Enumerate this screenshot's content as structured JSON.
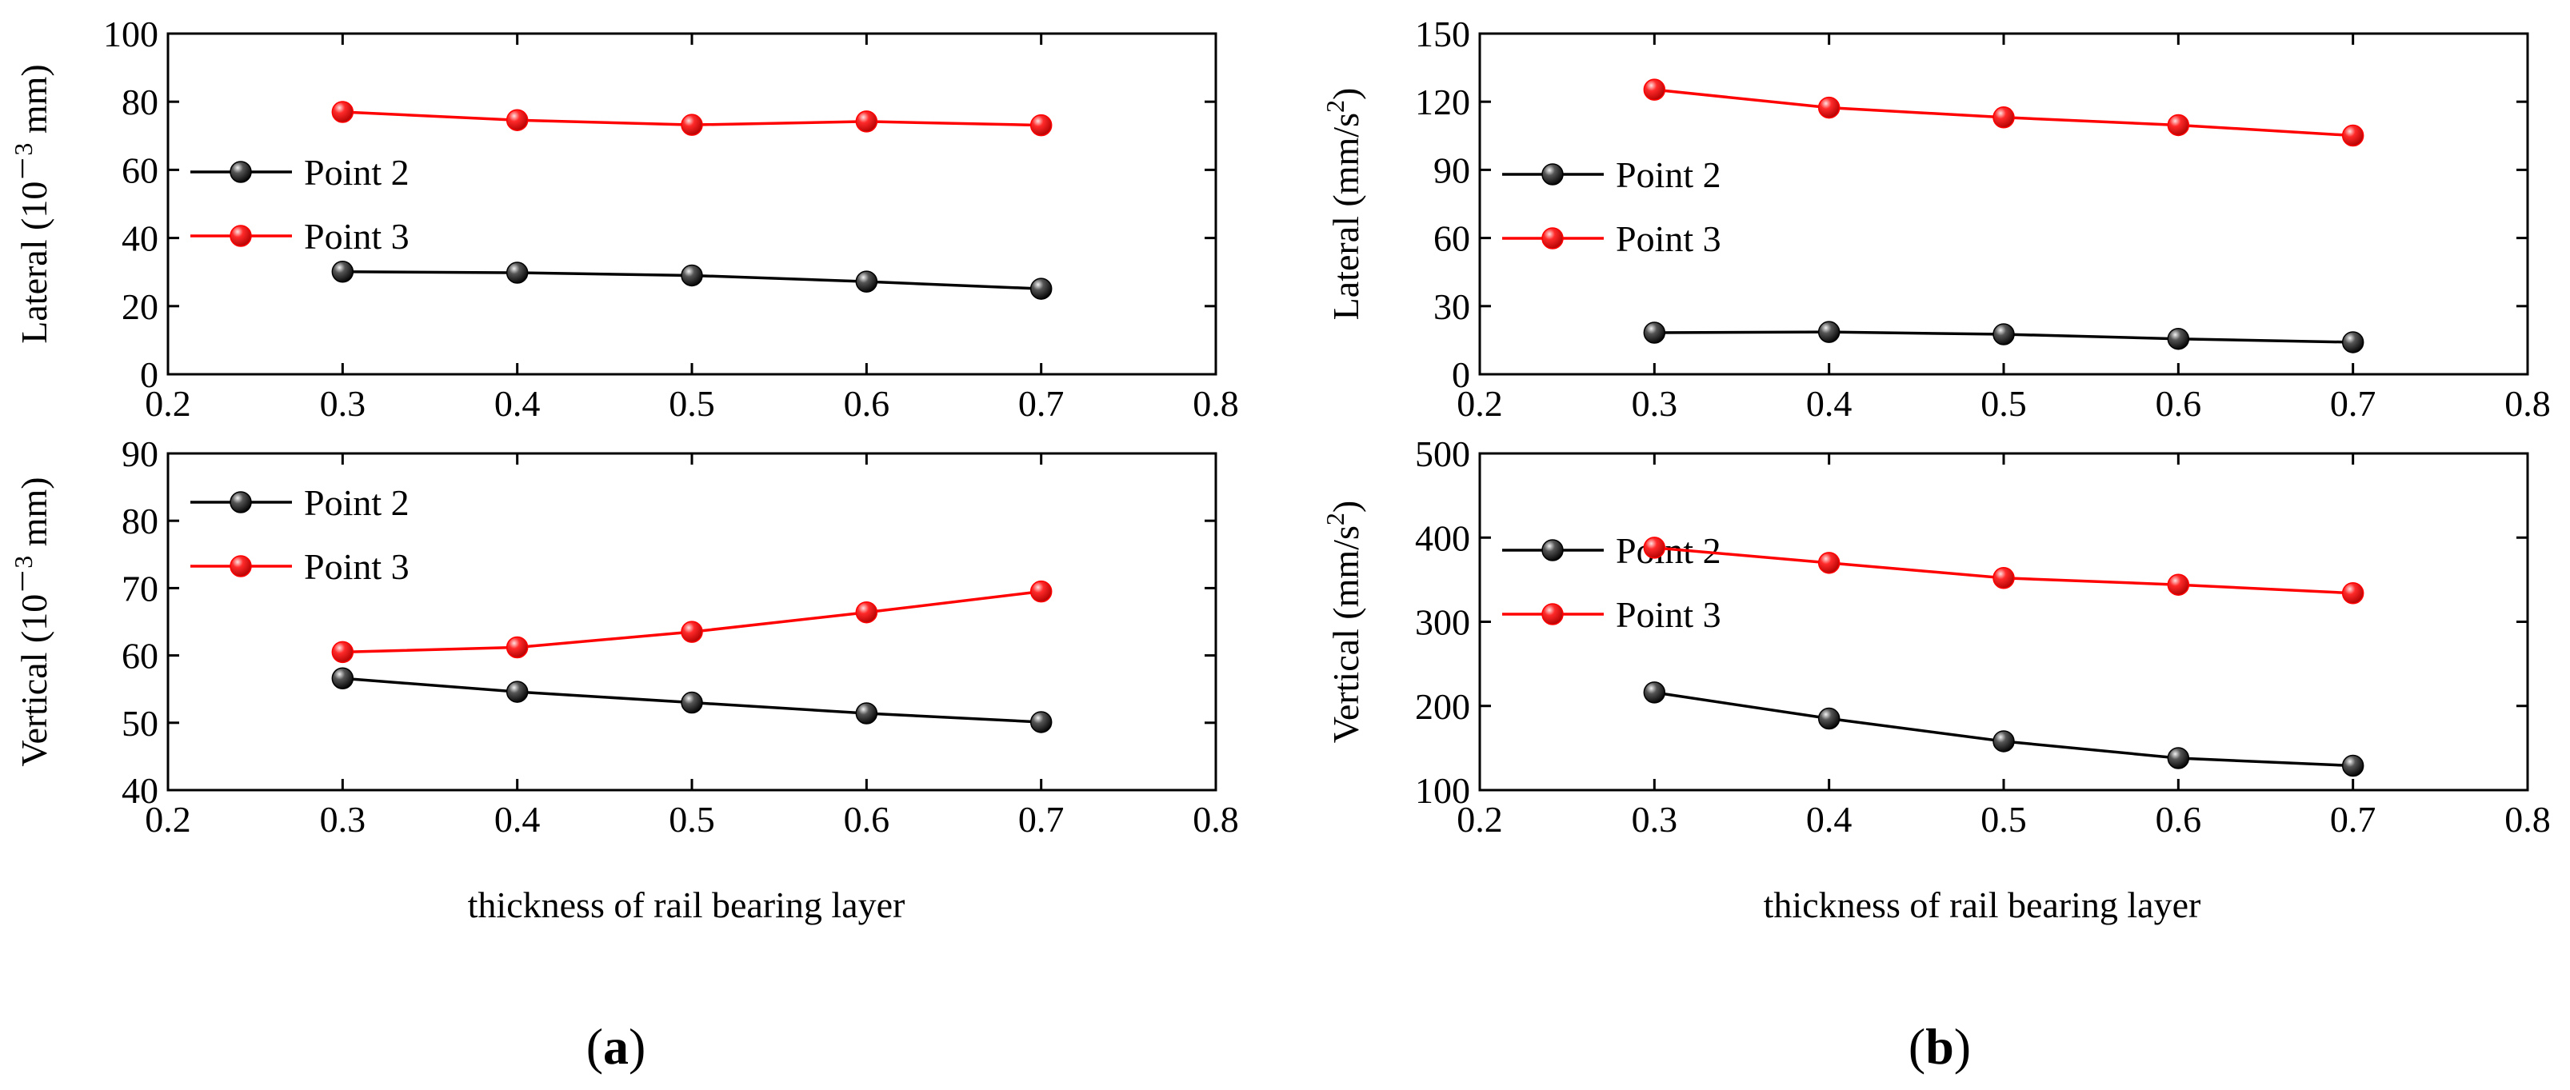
{
  "colors": {
    "black_series": "#000000",
    "red_series": "#ff0000",
    "axis": "#000000"
  },
  "chart_data": [
    {
      "id": "a-top",
      "type": "line",
      "ylabel_prefix": "Lateral (10",
      "ylabel_sup": "－3",
      "ylabel_suffix": " mm)",
      "ylim": [
        0,
        100
      ],
      "yticks": [
        0,
        20,
        40,
        60,
        80,
        100
      ],
      "xlim": [
        0.2,
        0.8
      ],
      "xticks": [
        "0.2",
        "0.3",
        "0.4",
        "0.5",
        "0.6",
        "0.7",
        "0.8"
      ],
      "x": [
        0.3,
        0.4,
        0.5,
        0.6,
        0.7
      ],
      "legend_position": "middle-left",
      "series": [
        {
          "name": "Point 2",
          "color": "#000000",
          "values": [
            30.1,
            29.8,
            29.0,
            27.2,
            25.1
          ]
        },
        {
          "name": "Point 3",
          "color": "#ff0000",
          "values": [
            77.0,
            74.6,
            73.2,
            74.2,
            73.1
          ]
        }
      ]
    },
    {
      "id": "a-bottom",
      "type": "line",
      "ylabel_prefix": "Vertical (10",
      "ylabel_sup": "－3",
      "ylabel_suffix": " mm)",
      "ylim": [
        40,
        90
      ],
      "yticks": [
        40,
        50,
        60,
        70,
        80,
        90
      ],
      "xlim": [
        0.2,
        0.8
      ],
      "xticks": [
        "0.2",
        "0.3",
        "0.4",
        "0.5",
        "0.6",
        "0.7",
        "0.8"
      ],
      "x": [
        0.3,
        0.4,
        0.5,
        0.6,
        0.7
      ],
      "legend_position": "top-left",
      "series": [
        {
          "name": "Point 2",
          "color": "#000000",
          "values": [
            56.6,
            54.6,
            53.0,
            51.4,
            50.1
          ]
        },
        {
          "name": "Point 3",
          "color": "#ff0000",
          "values": [
            60.5,
            61.2,
            63.5,
            66.4,
            69.5
          ]
        }
      ]
    },
    {
      "id": "b-top",
      "type": "line",
      "ylabel_prefix": "Lateral (mm/s",
      "ylabel_sup": "2",
      "ylabel_suffix": ")",
      "ylim": [
        0,
        150
      ],
      "yticks": [
        0,
        30,
        60,
        90,
        120,
        150
      ],
      "xlim": [
        0.2,
        0.8
      ],
      "xticks": [
        "0.2",
        "0.3",
        "0.4",
        "0.5",
        "0.6",
        "0.7",
        "0.8"
      ],
      "x": [
        0.3,
        0.4,
        0.5,
        0.6,
        0.7
      ],
      "legend_position": "middle-left",
      "series": [
        {
          "name": "Point 2",
          "color": "#000000",
          "values": [
            18.3,
            18.6,
            17.6,
            15.6,
            14.1
          ]
        },
        {
          "name": "Point 3",
          "color": "#ff0000",
          "values": [
            125.3,
            117.4,
            113.1,
            109.7,
            105.1
          ]
        }
      ]
    },
    {
      "id": "b-bottom",
      "type": "line",
      "ylabel_prefix": "Vertical (mm/s",
      "ylabel_sup": "2",
      "ylabel_suffix": ")",
      "ylim": [
        100,
        500
      ],
      "yticks": [
        100,
        200,
        300,
        400,
        500
      ],
      "xlim": [
        0.2,
        0.8
      ],
      "xticks": [
        "0.2",
        "0.3",
        "0.4",
        "0.5",
        "0.6",
        "0.7",
        "0.8"
      ],
      "x": [
        0.3,
        0.4,
        0.5,
        0.6,
        0.7
      ],
      "legend_position": "middle-left",
      "series": [
        {
          "name": "Point 2",
          "color": "#000000",
          "values": [
            216,
            185,
            158,
            138,
            129
          ]
        },
        {
          "name": "Point 3",
          "color": "#ff0000",
          "values": [
            388,
            370,
            352,
            344,
            334
          ]
        }
      ]
    }
  ],
  "xaxis_titles": {
    "a": "thickness of rail bearing layer",
    "b": "thickness of rail bearing layer"
  },
  "panel_labels": {
    "a": {
      "open": "(",
      "letter": "a",
      "close": ")"
    },
    "b": {
      "open": "(",
      "letter": "b",
      "close": ")"
    }
  }
}
